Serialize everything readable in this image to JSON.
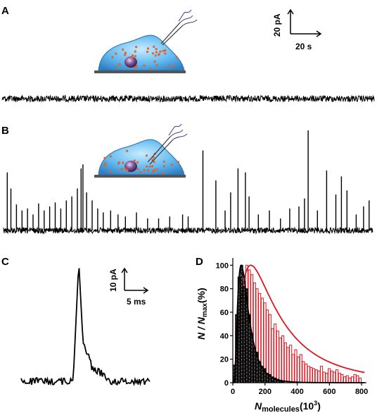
{
  "panel_labels": {
    "a": "A",
    "b": "B",
    "c": "C",
    "d": "D"
  },
  "scalebar_a": {
    "y_label": "20 pA",
    "x_label": "20 s"
  },
  "scalebar_c": {
    "y_label": "10 pA",
    "x_label": "5 ms"
  },
  "trace_b_spikes": [
    {
      "t": 0.01,
      "a": 0.58
    },
    {
      "t": 0.02,
      "a": 0.42
    },
    {
      "t": 0.035,
      "a": 0.26
    },
    {
      "t": 0.05,
      "a": 0.2
    },
    {
      "t": 0.065,
      "a": 0.22
    },
    {
      "t": 0.08,
      "a": 0.16
    },
    {
      "t": 0.095,
      "a": 0.27
    },
    {
      "t": 0.11,
      "a": 0.2
    },
    {
      "t": 0.125,
      "a": 0.24
    },
    {
      "t": 0.14,
      "a": 0.28
    },
    {
      "t": 0.155,
      "a": 0.22
    },
    {
      "t": 0.17,
      "a": 0.3
    },
    {
      "t": 0.185,
      "a": 0.34
    },
    {
      "t": 0.2,
      "a": 0.42
    },
    {
      "t": 0.21,
      "a": 0.62
    },
    {
      "t": 0.215,
      "a": 0.66
    },
    {
      "t": 0.225,
      "a": 0.38
    },
    {
      "t": 0.24,
      "a": 0.3
    },
    {
      "t": 0.255,
      "a": 0.22
    },
    {
      "t": 0.27,
      "a": 0.18
    },
    {
      "t": 0.29,
      "a": 0.2
    },
    {
      "t": 0.31,
      "a": 0.16
    },
    {
      "t": 0.33,
      "a": 0.14
    },
    {
      "t": 0.36,
      "a": 0.18
    },
    {
      "t": 0.39,
      "a": 0.12
    },
    {
      "t": 0.42,
      "a": 0.12
    },
    {
      "t": 0.45,
      "a": 0.14
    },
    {
      "t": 0.485,
      "a": 0.16
    },
    {
      "t": 0.5,
      "a": 0.14
    },
    {
      "t": 0.54,
      "a": 0.8
    },
    {
      "t": 0.575,
      "a": 0.5
    },
    {
      "t": 0.6,
      "a": 0.2
    },
    {
      "t": 0.615,
      "a": 0.38
    },
    {
      "t": 0.635,
      "a": 0.62
    },
    {
      "t": 0.655,
      "a": 0.58
    },
    {
      "t": 0.665,
      "a": 0.34
    },
    {
      "t": 0.69,
      "a": 0.16
    },
    {
      "t": 0.72,
      "a": 0.2
    },
    {
      "t": 0.75,
      "a": 0.12
    },
    {
      "t": 0.775,
      "a": 0.22
    },
    {
      "t": 0.8,
      "a": 0.24
    },
    {
      "t": 0.815,
      "a": 0.32
    },
    {
      "t": 0.825,
      "a": 1.0
    },
    {
      "t": 0.85,
      "a": 0.2
    },
    {
      "t": 0.875,
      "a": 0.6
    },
    {
      "t": 0.9,
      "a": 0.36
    },
    {
      "t": 0.915,
      "a": 0.54
    },
    {
      "t": 0.93,
      "a": 0.4
    },
    {
      "t": 0.955,
      "a": 0.16
    },
    {
      "t": 0.975,
      "a": 0.24
    },
    {
      "t": 0.99,
      "a": 0.3
    }
  ],
  "chart_data": {
    "type": "bar",
    "xlabel": "N",
    "xlabel_sub": "molecules",
    "xlabel_suffix": "(10",
    "xlabel_exp": "3",
    "xlabel_close": ")",
    "ylabel_n": "N",
    "ylabel_slash": " / ",
    "ylabel_nmax": "N",
    "ylabel_sub": "max",
    "ylabel_pct": "(%)",
    "xlim": [
      0,
      830
    ],
    "ylim": [
      0,
      105
    ],
    "xticks": [
      0,
      200,
      400,
      600,
      800
    ],
    "yticks": [
      0,
      20,
      40,
      60,
      80,
      100
    ],
    "bin_width": 16,
    "series": [
      {
        "color": "#000000",
        "bins": [
          0,
          16,
          32,
          48,
          64,
          80,
          96,
          112,
          128,
          144,
          160,
          176,
          192,
          208,
          224,
          240,
          256,
          272,
          288,
          304
        ],
        "values": [
          15,
          58,
          90,
          100,
          82,
          80,
          58,
          42,
          30,
          26,
          18,
          14,
          12,
          8,
          7,
          5,
          4,
          3,
          2,
          1
        ],
        "fit_peak": 52,
        "fit_sigma": 0.62
      },
      {
        "color": "#e0141e",
        "bins": [
          0,
          16,
          32,
          48,
          64,
          80,
          96,
          112,
          128,
          144,
          160,
          176,
          192,
          208,
          224,
          240,
          256,
          272,
          288,
          304,
          320,
          336,
          352,
          368,
          384,
          400,
          416,
          432,
          448,
          464,
          480,
          496,
          512,
          528,
          544,
          560,
          576,
          592,
          608,
          624,
          640,
          656,
          672,
          688,
          704,
          720,
          736,
          752,
          768,
          784
        ],
        "values": [
          4,
          20,
          62,
          74,
          86,
          100,
          96,
          92,
          85,
          80,
          76,
          72,
          68,
          62,
          58,
          46,
          50,
          44,
          38,
          40,
          34,
          30,
          32,
          24,
          28,
          22,
          24,
          18,
          16,
          14,
          13,
          12,
          11,
          10,
          14,
          9,
          8,
          12,
          10,
          9,
          11,
          8,
          7,
          5,
          6,
          4,
          5,
          7,
          6,
          4
        ],
        "fit_peak": 112,
        "fit_sigma": 0.9
      }
    ]
  }
}
